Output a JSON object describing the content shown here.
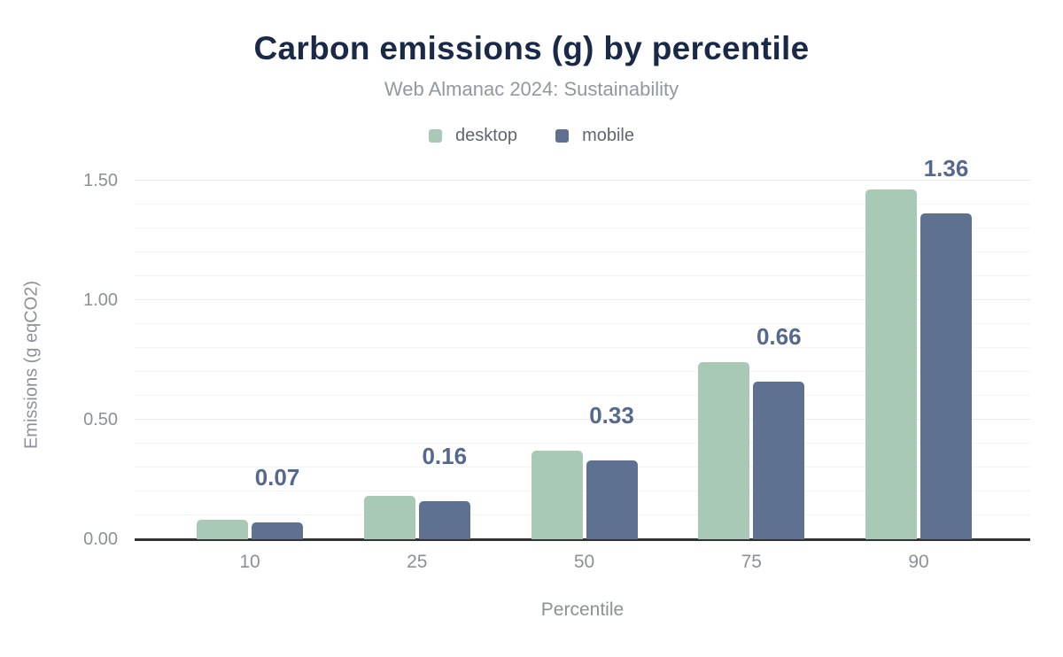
{
  "chart_data": {
    "type": "bar",
    "title": "Carbon emissions (g) by percentile",
    "subtitle": "Web Almanac 2024: Sustainability",
    "xlabel": "Percentile",
    "ylabel": "Emissions (g eqCO2)",
    "categories": [
      "10",
      "25",
      "50",
      "75",
      "90"
    ],
    "series": [
      {
        "name": "desktop",
        "color": "#a8c9b6",
        "values": [
          0.08,
          0.18,
          0.37,
          0.74,
          1.46
        ]
      },
      {
        "name": "mobile",
        "color": "#5e7191",
        "values": [
          0.07,
          0.16,
          0.33,
          0.66,
          1.36
        ]
      }
    ],
    "bar_labels": {
      "on_series": "mobile",
      "values": [
        "0.07",
        "0.16",
        "0.33",
        "0.66",
        "1.36"
      ]
    },
    "y_ticks": [
      {
        "value": 0,
        "label": "0.00"
      },
      {
        "value": 0.5,
        "label": "0.50"
      },
      {
        "value": 1.0,
        "label": "1.00"
      },
      {
        "value": 1.5,
        "label": "1.50"
      }
    ],
    "ylim": [
      0,
      1.55
    ],
    "grid": {
      "on": true,
      "minor_step": 0.1,
      "major_step": 0.5
    },
    "legend_position": "top"
  },
  "colors": {
    "desktop": "#a8c9b6",
    "mobile": "#5e7191",
    "title": "#1b2949",
    "subtitle": "#9298a1",
    "legend_label": "#5f6670",
    "axis_tick": "#8b9198",
    "bar_label": "#55688d",
    "axis_line": "#333333",
    "grid_minor": "#f4f4f5",
    "grid_major": "#ebebee",
    "background": "#ffffff"
  }
}
